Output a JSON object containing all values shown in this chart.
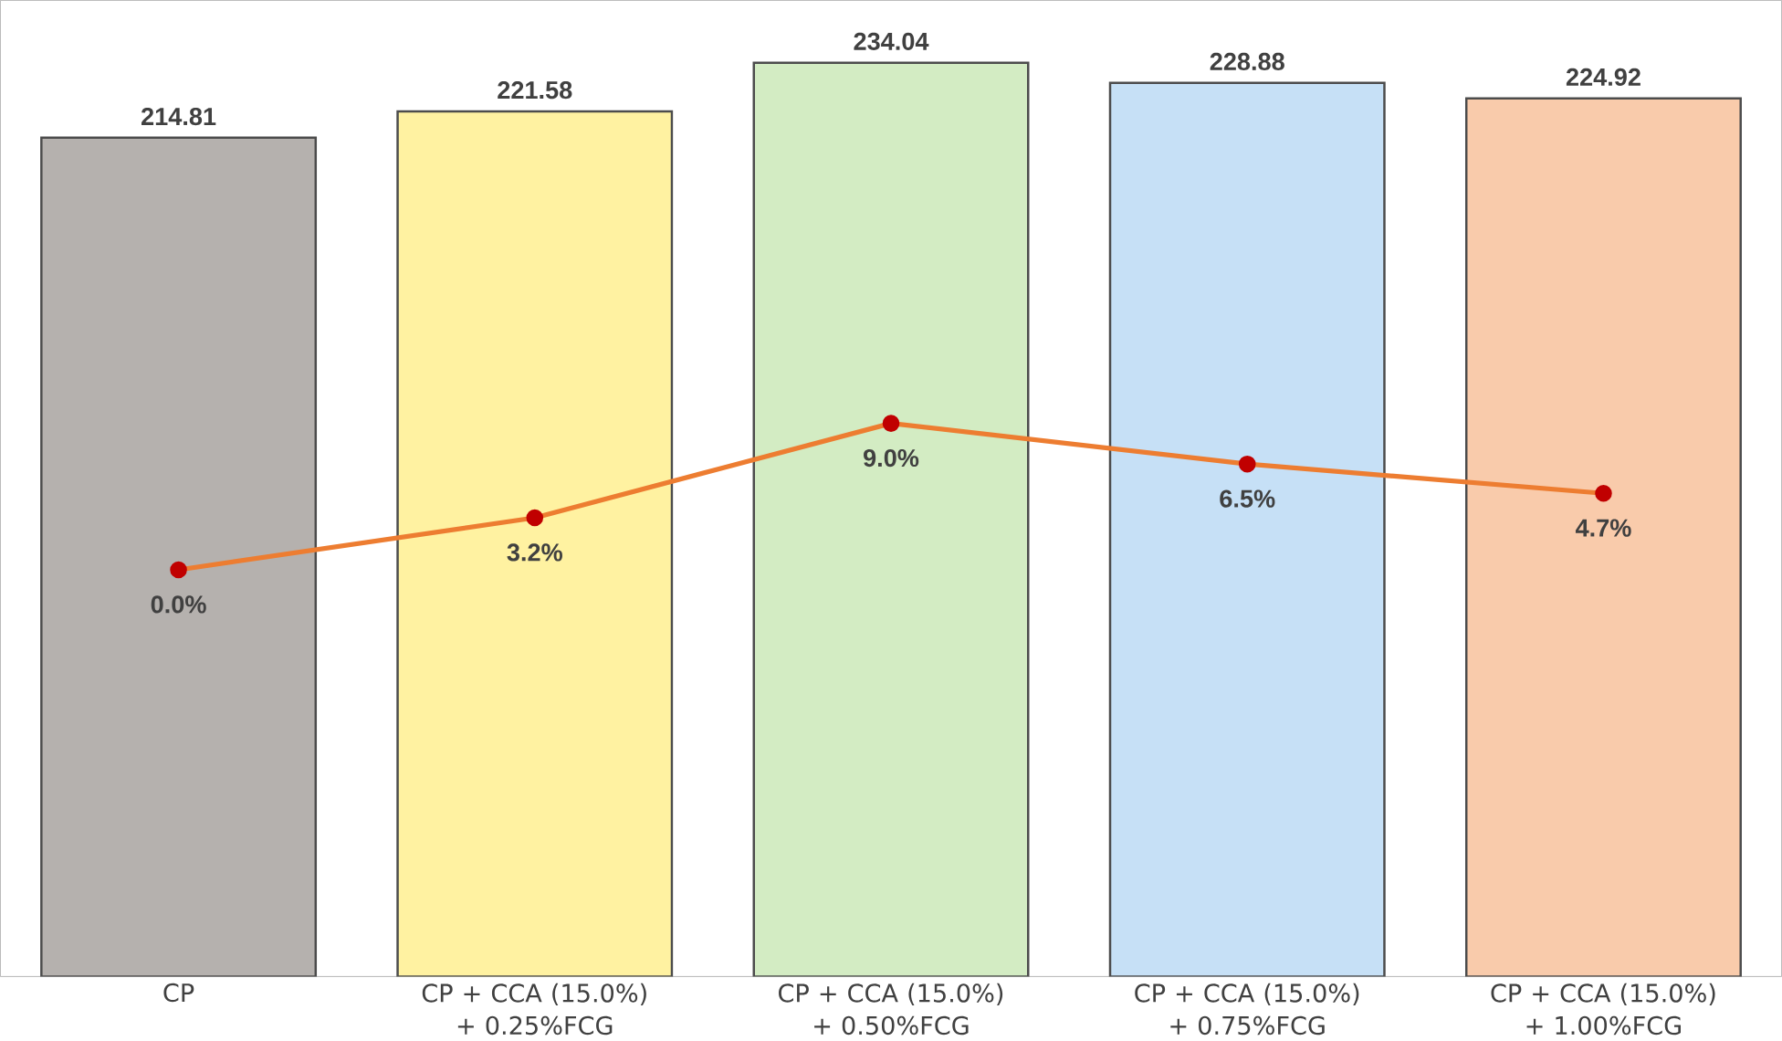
{
  "chart_data": {
    "type": "bar",
    "categories": [
      "CP",
      "CP + CCA (15.0%) + 0.25%FCG",
      "CP + CCA (15.0%) + 0.50%FCG",
      "CP + CCA (15.0%) + 0.75%FCG",
      "CP + CCA (15.0%) + 1.00%FCG"
    ],
    "series": [
      {
        "colors": [
          "#b5b1ae",
          "#fff2a1",
          "#d3ecc3",
          "#c6e0f6",
          "#f9cbab"
        ],
        "values": [
          214.81,
          221.58,
          234.04,
          228.88,
          224.92
        ],
        "value_labels": [
          "214.81",
          "221.58",
          "234.04",
          "228.88",
          "224.92"
        ]
      },
      {
        "type": "line",
        "axis": "y2",
        "color": "#ed7d31",
        "marker": "circle",
        "values": [
          0.0,
          3.2,
          9.0,
          6.5,
          4.7
        ],
        "value_labels": [
          "0.0%",
          "3.2%",
          "9.0%",
          "6.5%",
          "4.7%"
        ]
      }
    ],
    "ylim": [
      0,
      250
    ],
    "y2lim": [
      -25,
      35
    ],
    "tick_labels": "x"
  }
}
